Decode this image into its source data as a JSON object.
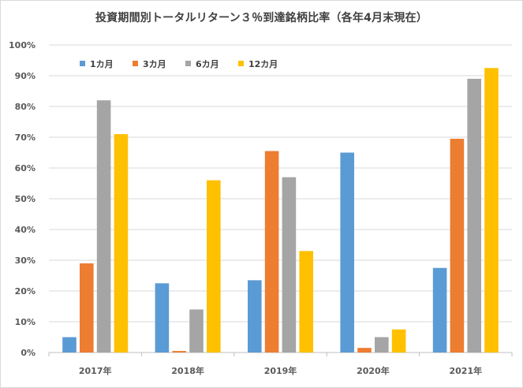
{
  "chart_data": {
    "type": "bar",
    "title": "投資期間別トータルリターン３％到達銘柄比率（各年4月末現在）",
    "categories": [
      "2017年",
      "2018年",
      "2019年",
      "2020年",
      "2021年"
    ],
    "series": [
      {
        "name": "1カ月",
        "color": "#5B9BD5",
        "values": [
          5,
          22.5,
          23.5,
          65,
          27.5
        ]
      },
      {
        "name": "3カ月",
        "color": "#ED7D31",
        "values": [
          29,
          0.5,
          65.5,
          1.5,
          69.5
        ]
      },
      {
        "name": "6カ月",
        "color": "#A5A5A5",
        "values": [
          82,
          14,
          57,
          5,
          89
        ]
      },
      {
        "name": "12カ月",
        "color": "#FFC000",
        "values": [
          71,
          56,
          33,
          7.5,
          92.5
        ]
      }
    ],
    "y_ticks": [
      "0%",
      "10%",
      "20%",
      "30%",
      "40%",
      "50%",
      "60%",
      "70%",
      "80%",
      "90%",
      "100%"
    ],
    "ylim": [
      0,
      100
    ],
    "grid": true,
    "legend_position": "top-left"
  }
}
